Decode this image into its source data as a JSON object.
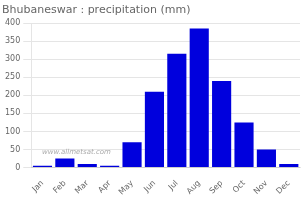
{
  "chart_data": {
    "type": "bar",
    "title": "Bhubaneswar : precipitation (mm)",
    "categories": [
      "Jan",
      "Feb",
      "Mar",
      "Apr",
      "May",
      "Jun",
      "Jul",
      "Aug",
      "Sep",
      "Oct",
      "Nov",
      "Dec"
    ],
    "values": [
      5,
      25,
      10,
      5,
      70,
      210,
      315,
      385,
      240,
      125,
      50,
      10
    ],
    "color": "#0000dd",
    "ylim": [
      0,
      400
    ],
    "yticks": [
      0,
      50,
      100,
      150,
      200,
      250,
      300,
      350,
      400
    ],
    "grid": true,
    "annotations": [
      "www.allmetsat.com"
    ]
  }
}
